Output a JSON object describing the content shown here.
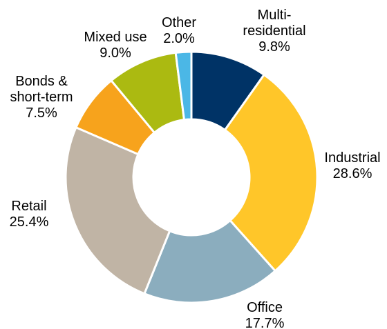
{
  "chart_data": {
    "type": "pie",
    "donut": true,
    "legend": "none",
    "slices": [
      {
        "label": [
          "Multi-",
          "residential"
        ],
        "value_label": "9.8%",
        "value": 9.8,
        "color": "#003366"
      },
      {
        "label": [
          "Industrial"
        ],
        "value_label": "28.6%",
        "value": 28.6,
        "color": "#ffc629"
      },
      {
        "label": [
          "Office"
        ],
        "value_label": "17.7%",
        "value": 17.7,
        "color": "#8badbe"
      },
      {
        "label": [
          "Retail"
        ],
        "value_label": "25.4%",
        "value": 25.4,
        "color": "#c0b4a5"
      },
      {
        "label": [
          "Bonds &",
          "short-term"
        ],
        "value_label": "7.5%",
        "value": 7.5,
        "color": "#f7a31c"
      },
      {
        "label": [
          "Mixed use"
        ],
        "value_label": "9.0%",
        "value": 9.0,
        "color": "#abba11"
      },
      {
        "label": [
          "Other"
        ],
        "value_label": "2.0%",
        "value": 2.0,
        "color": "#4bb7e6"
      }
    ]
  }
}
